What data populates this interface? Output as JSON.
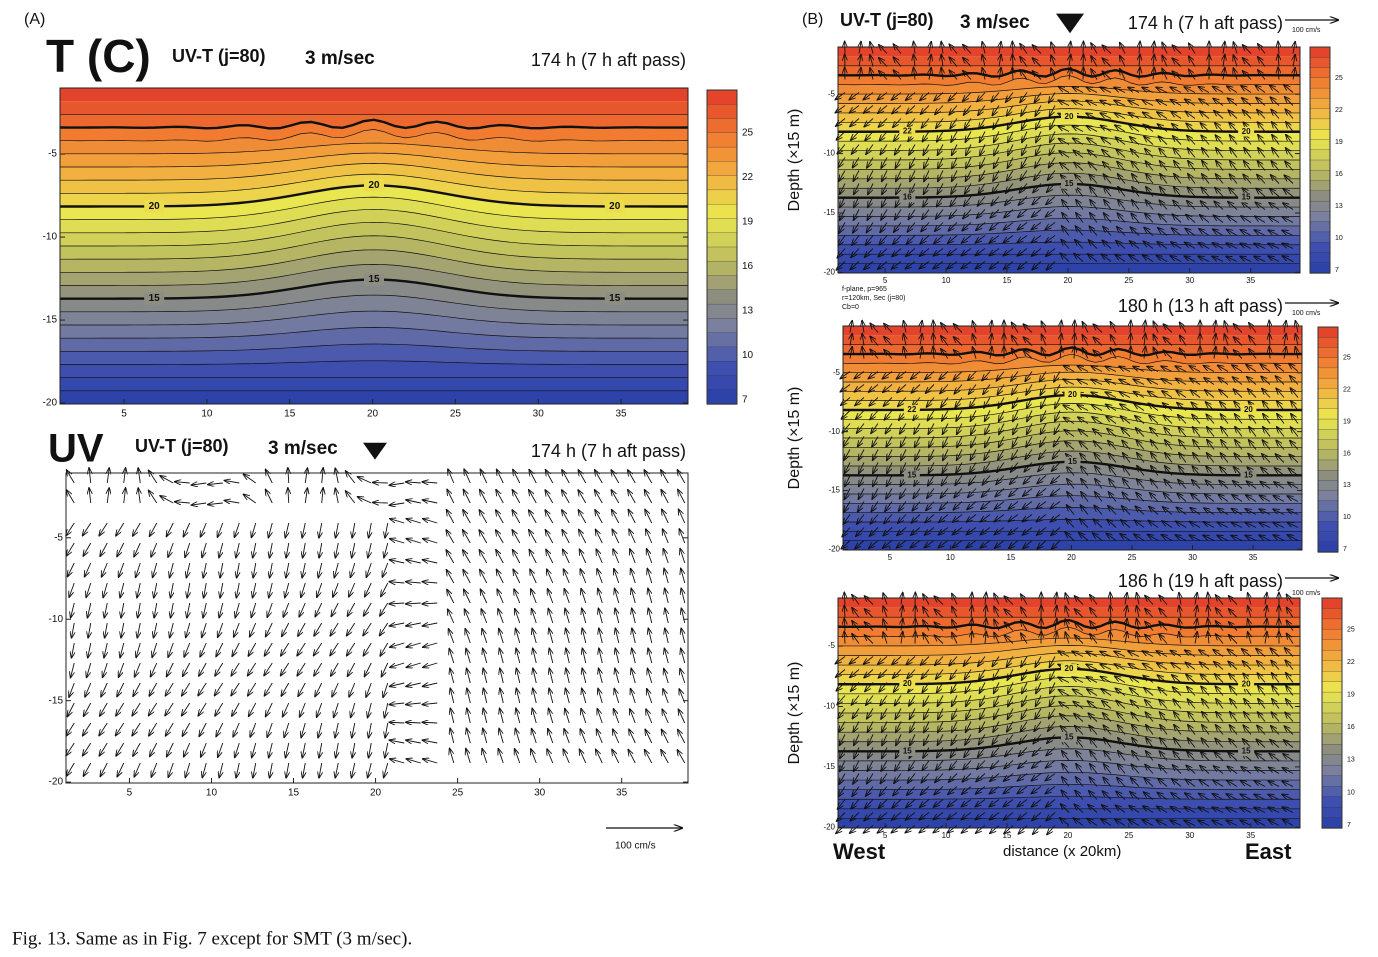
{
  "label_a": "(A)",
  "t_panel": {
    "symbol": "T (C)",
    "run": "UV-T (j=80)",
    "speed": "3 m/sec",
    "time": "174 h (7 h aft pass)",
    "xticks": [
      5,
      10,
      15,
      20,
      25,
      30,
      35
    ],
    "yticks": [
      -5,
      -10,
      -15,
      -20
    ],
    "colorbar_ticks": [
      25,
      22,
      19,
      16,
      13,
      10,
      7
    ],
    "contour_labels": [
      "20",
      "20",
      "20",
      "15",
      "15",
      "15"
    ]
  },
  "uv_panel": {
    "symbol": "UV",
    "run": "UV-T (j=80)",
    "speed": "3 m/sec",
    "time": "174 h (7 h aft pass)",
    "xticks": [
      5,
      10,
      15,
      20,
      25,
      30,
      35
    ],
    "yticks": [
      -5,
      -10,
      -15,
      -20
    ],
    "scale": "100 cm/s"
  },
  "label_b": "(B)",
  "b_panels": [
    {
      "run": "UV-T (j=80)",
      "speed": "3 m/sec",
      "time": "174 h (7 h aft pass)",
      "scale": "100 cm/s",
      "y_label": "Depth (×15 m)",
      "xticks": [
        5,
        10,
        15,
        20,
        25,
        30,
        35
      ],
      "yticks": [
        -5,
        -10,
        -15,
        -20
      ],
      "colorbar_ticks": [
        25,
        22,
        19,
        16,
        13,
        10,
        7
      ],
      "contour_labels": [
        "22",
        "20",
        "20",
        "16",
        "15",
        "15"
      ],
      "notes": [
        "f-plane, p=965",
        "r=120km, Sec (j=80)",
        "Cb=0"
      ]
    },
    {
      "time": "180 h (13 h aft pass)",
      "scale": "100 cm/s",
      "y_label": "Depth (×15 m)",
      "xticks": [
        5,
        10,
        15,
        20,
        25,
        30,
        35
      ],
      "yticks": [
        -5,
        -10,
        -15,
        -20
      ],
      "colorbar_ticks": [
        25,
        22,
        19,
        16,
        13,
        10,
        7
      ],
      "contour_labels": [
        "22",
        "20",
        "20",
        "15",
        "15",
        "15"
      ]
    },
    {
      "time": "186 h (19 h aft pass)",
      "scale": "100 cm/s",
      "y_label": "Depth (×15 m)",
      "xticks": [
        5,
        10,
        15,
        20,
        25,
        30,
        35
      ],
      "yticks": [
        -5,
        -10,
        -15,
        -20
      ],
      "colorbar_ticks": [
        25,
        22,
        19,
        16,
        13,
        10,
        7
      ],
      "contour_labels": [
        "20",
        "20",
        "20",
        "15",
        "15",
        "15"
      ]
    }
  ],
  "west": "West",
  "x_axis_label": "distance (x 20km)",
  "east": "East",
  "caption": "Fig. 13. Same as in Fig. 7 except for SMT (3 m/sec)."
}
